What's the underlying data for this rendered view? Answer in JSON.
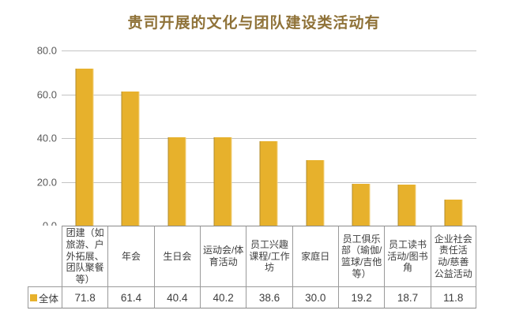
{
  "title": "贵司开展的文化与团队建设类活动有",
  "chart_data": {
    "type": "bar",
    "title": "贵司开展的文化与团队建设类活动有",
    "categories": [
      "团建（如旅游、户外拓展、团队聚餐等）",
      "年会",
      "生日会",
      "运动会/体育活动",
      "员工兴趣课程/工作坊",
      "家庭日",
      "员工俱乐部（瑜伽/篮球/吉他等）",
      "员工读书活动/图书角",
      "企业社会责任活动/慈善公益活动"
    ],
    "series": [
      {
        "name": "全体",
        "values": [
          71.8,
          61.4,
          40.4,
          40.2,
          38.6,
          30.0,
          19.2,
          18.7,
          11.8
        ],
        "value_labels": [
          "71.8",
          "61.4",
          "40.4",
          "40.2",
          "38.6",
          "30.0",
          "19.2",
          "18.7",
          "11.8"
        ]
      }
    ],
    "ylim": [
      0,
      80
    ],
    "ytick_labels": [
      "80.0",
      "60.0",
      "40.0",
      "20.0",
      "0.0"
    ],
    "grid": "horizontal-only",
    "legend_position": "table-row-left",
    "colors": {
      "bar": "#E7B12C",
      "title": "#8F7238",
      "axis_text": "#595959",
      "gridline": "#C3C3C3",
      "table_border": "#9A9A9A",
      "table_text": "#3D3D3D"
    }
  }
}
